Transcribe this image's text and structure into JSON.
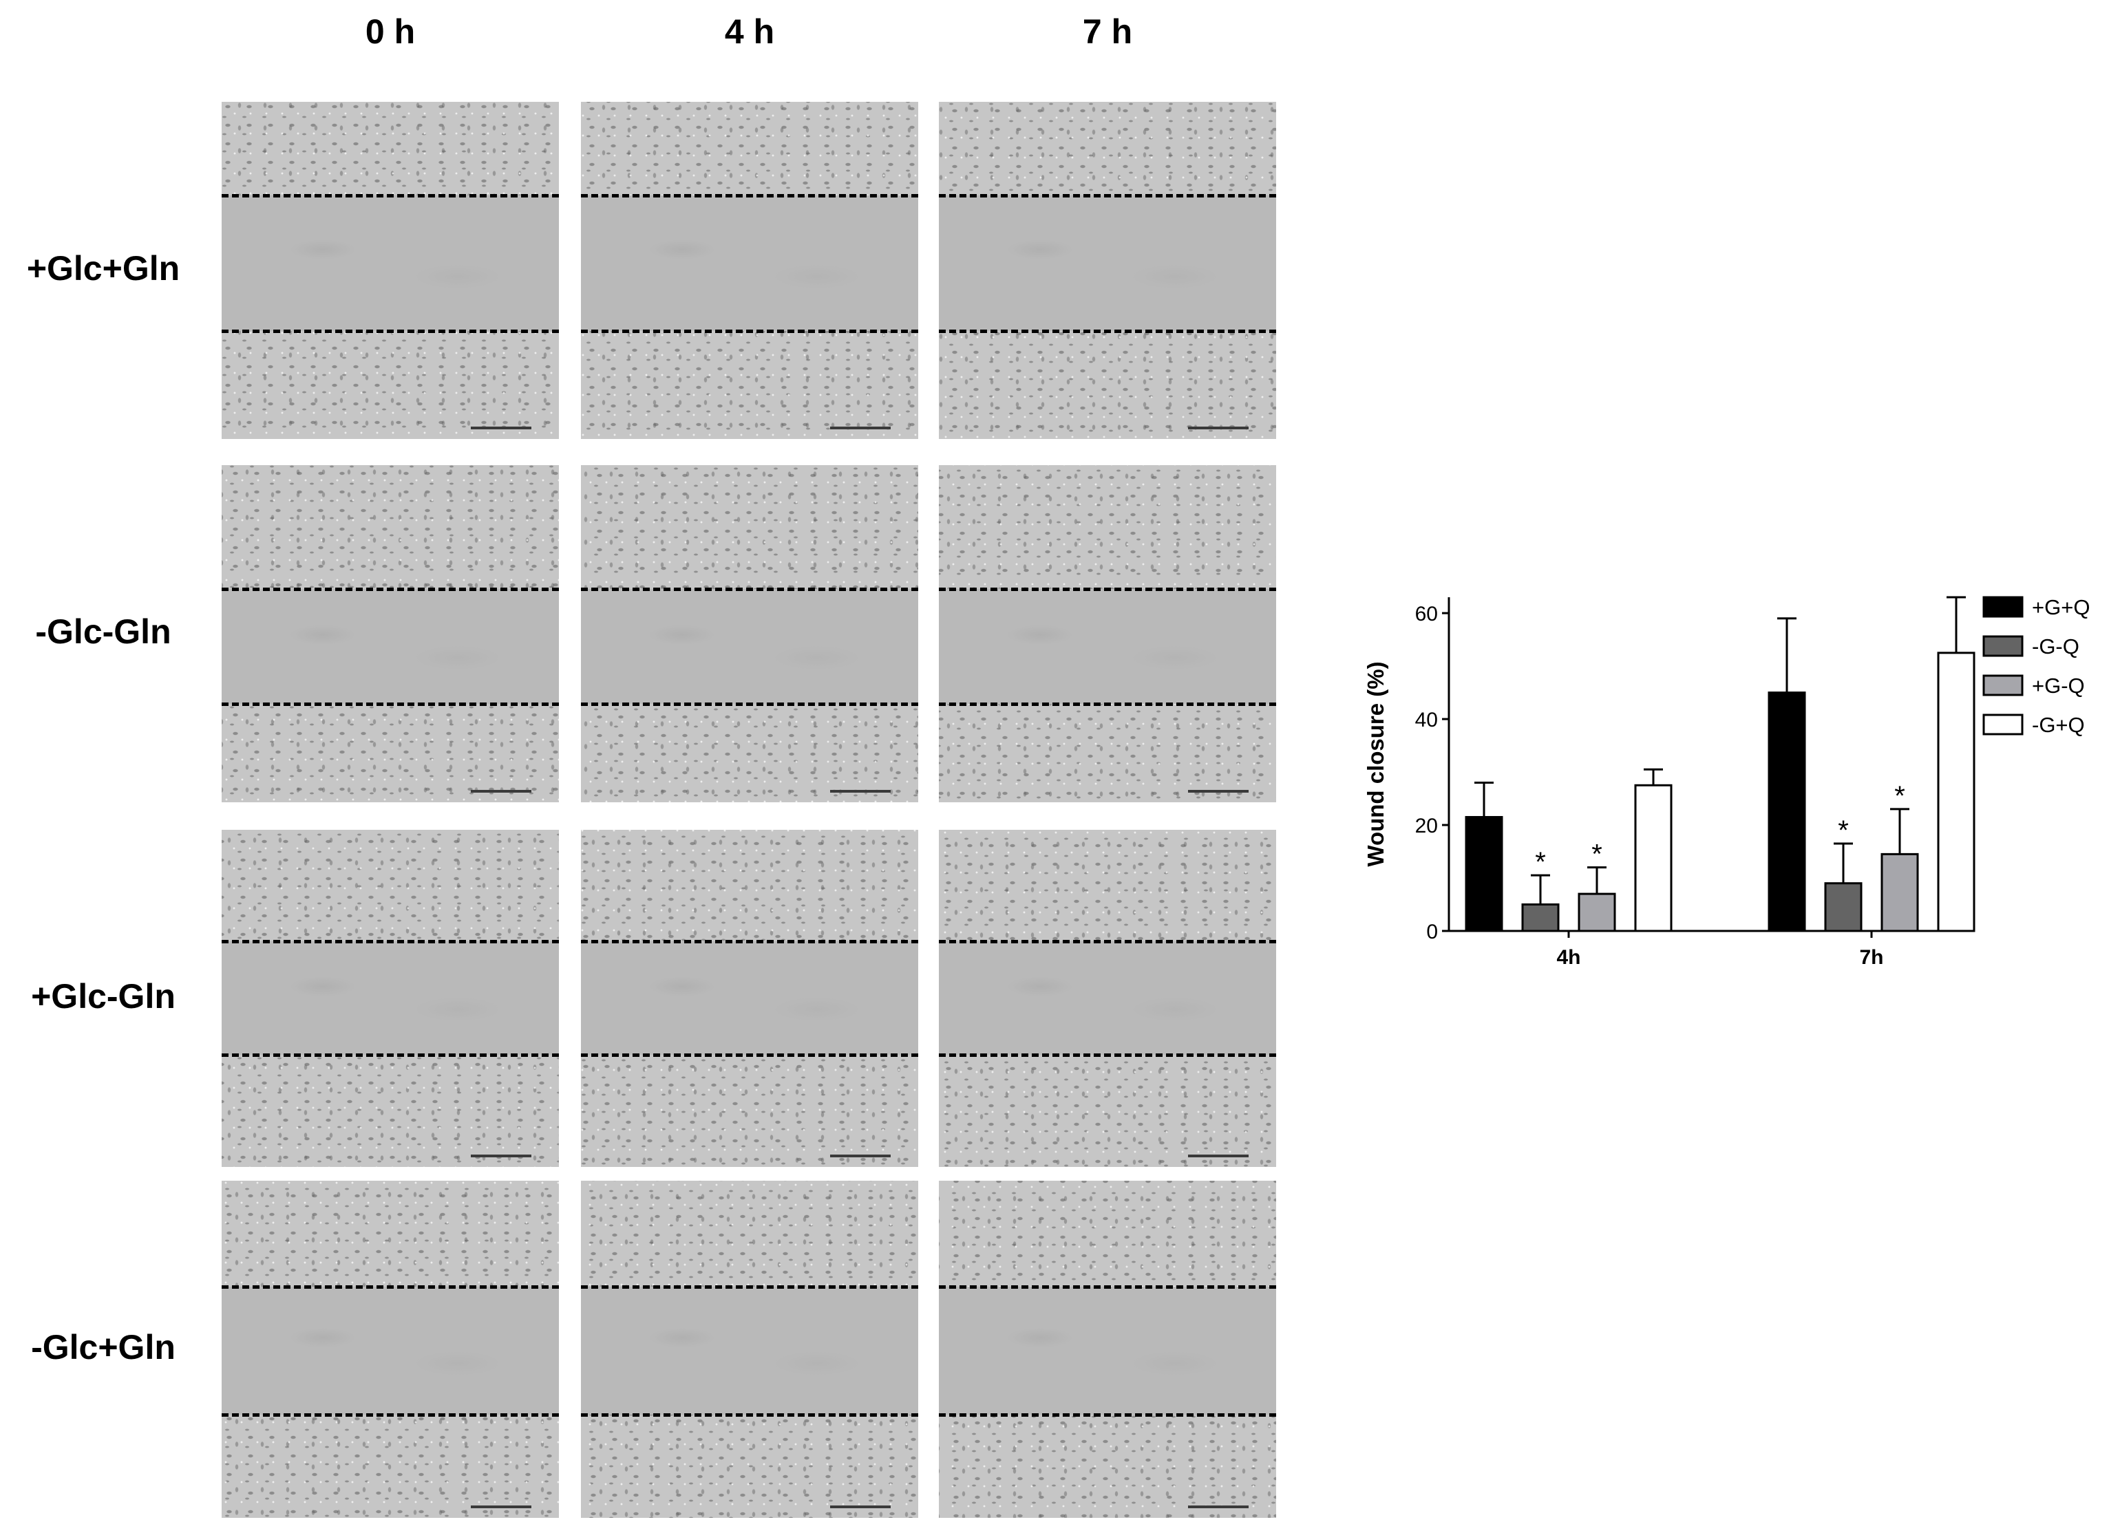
{
  "micrographs": {
    "columns": [
      "0 h",
      "4 h",
      "7 h"
    ],
    "rows": [
      "+Glc+Gln",
      "-Glc-Gln",
      "+Glc-Gln",
      "-Glc+Gln"
    ]
  },
  "chart_data": {
    "type": "bar",
    "title": "",
    "xlabel": "",
    "ylabel": "Wound closure (%)",
    "ylim": [
      0,
      63
    ],
    "yticks": [
      0,
      20,
      40,
      60
    ],
    "categories": [
      "4h",
      "7h"
    ],
    "legend_position": "top-right",
    "grid": false,
    "series": [
      {
        "name": "+G+Q",
        "color": "#000000",
        "values": [
          21.5,
          45
        ],
        "errors": [
          6.5,
          14
        ],
        "significant": [
          false,
          false
        ]
      },
      {
        "name": "-G-Q",
        "color": "#646464",
        "values": [
          5,
          9
        ],
        "errors": [
          5.5,
          7.5
        ],
        "significant": [
          true,
          true
        ]
      },
      {
        "name": "+G-Q",
        "color": "#a6a6ab",
        "values": [
          7,
          14.5
        ],
        "errors": [
          5,
          8.5
        ],
        "significant": [
          true,
          true
        ]
      },
      {
        "name": "-G+Q",
        "color": "#ffffff",
        "values": [
          27.5,
          52.5
        ],
        "errors": [
          3,
          10.5
        ],
        "significant": [
          false,
          false
        ]
      }
    ],
    "significance_marker": "*"
  }
}
